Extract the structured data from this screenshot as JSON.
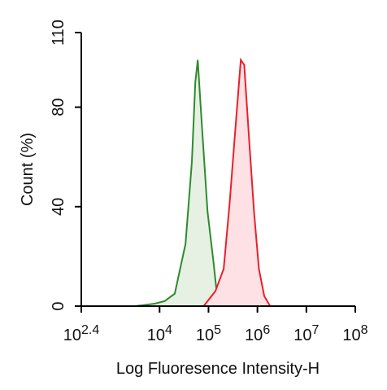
{
  "chart_data": {
    "type": "area",
    "x_label": "Log Fluoresence Intensity-H",
    "y_label": "Count  (%)",
    "x_scale": "log",
    "xlim": [
      251.19,
      100000000
    ],
    "xticks": [
      {
        "value": 251.19,
        "label": "10",
        "exponent": "2.4"
      },
      {
        "value": 10000,
        "label": "10",
        "exponent": "4"
      },
      {
        "value": 100000,
        "label": "10",
        "exponent": "5"
      },
      {
        "value": 1000000,
        "label": "10",
        "exponent": "6"
      },
      {
        "value": 10000000,
        "label": "10",
        "exponent": "7"
      },
      {
        "value": 100000000,
        "label": "10",
        "exponent": "8"
      }
    ],
    "ylim": [
      0,
      110
    ],
    "yticks": [
      0,
      40,
      80,
      110
    ],
    "series": [
      {
        "color": "#2e8b2e",
        "fill": "#e6f0e3",
        "x": [
          3162,
          7943,
          12589,
          20417,
          33884,
          45709,
          53703,
          60256,
          72444,
          95499,
          125893,
          144544,
          169824
        ],
        "values": [
          0,
          1,
          2,
          5,
          25,
          58,
          90,
          99,
          74,
          38,
          18,
          7,
          0
        ]
      },
      {
        "color": "#e8202a",
        "fill": "#fde1e5",
        "x": [
          79433,
          138038,
          204174,
          269153,
          363078,
          457088,
          537032,
          676083,
          851138,
          1071519,
          1380384,
          1819701
        ],
        "values": [
          0,
          6,
          15,
          41,
          74,
          99,
          97,
          67,
          38,
          15,
          4,
          0
        ]
      }
    ]
  }
}
